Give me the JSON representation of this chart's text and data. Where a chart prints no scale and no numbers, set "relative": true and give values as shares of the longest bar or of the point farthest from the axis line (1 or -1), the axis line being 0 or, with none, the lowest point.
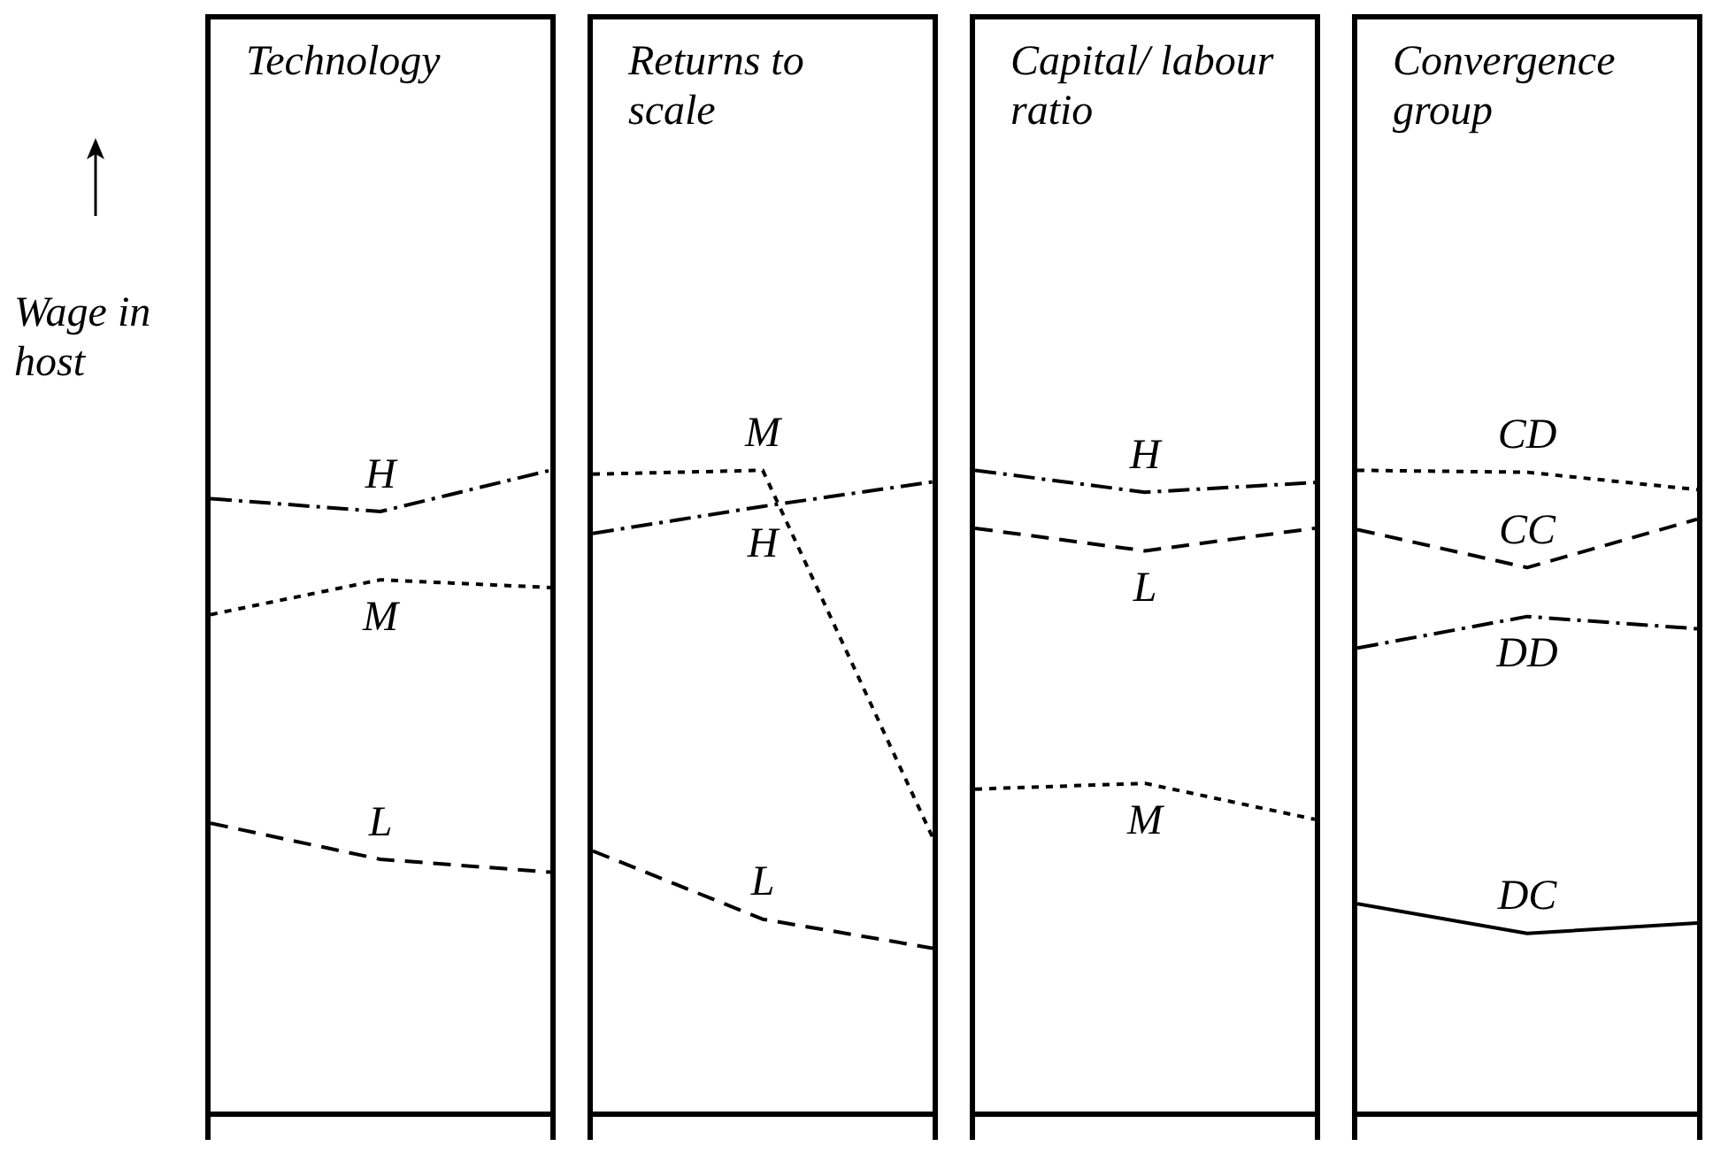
{
  "chart_data": [
    {
      "type": "line",
      "title": "Technology",
      "ylabel": "Wage in host",
      "relative": true,
      "categories": [
        null,
        null,
        null
      ],
      "grid": false,
      "legend": false,
      "marker": "none",
      "series": [
        {
          "name": "H",
          "color": "#000000",
          "line_style": "dashdot",
          "values": [
            0.956,
            0.936,
            1
          ]
        },
        {
          "name": "M",
          "color": "#000000",
          "line_style": "dotted",
          "values": [
            0.776,
            0.83,
            0.818
          ]
        },
        {
          "name": "L",
          "color": "#000000",
          "line_style": "dashed",
          "values": [
            0.452,
            0.396,
            0.376
          ]
        }
      ]
    },
    {
      "type": "line",
      "title": "Returns to scale",
      "relative": true,
      "categories": [
        null,
        null,
        null
      ],
      "grid": false,
      "legend": false,
      "marker": "none",
      "series": [
        {
          "name": "M",
          "color": "#000000",
          "line_style": "dotted",
          "values": [
            0.994,
            1,
            0.43
          ]
        },
        {
          "name": "H",
          "color": "#000000",
          "line_style": "dashdot",
          "values": [
            0.902,
            0.944,
            0.982
          ]
        },
        {
          "name": "L",
          "color": "#000000",
          "line_style": "dashed",
          "values": [
            0.409,
            0.303,
            0.258
          ]
        }
      ]
    },
    {
      "type": "line",
      "title": "Capital/ labour ratio",
      "relative": true,
      "categories": [
        null,
        null,
        null
      ],
      "grid": false,
      "legend": false,
      "marker": "none",
      "series": [
        {
          "name": "H",
          "color": "#000000",
          "line_style": "dashdot",
          "values": [
            1,
            0.966,
            0.981
          ]
        },
        {
          "name": "L",
          "color": "#000000",
          "line_style": "dashed",
          "values": [
            0.91,
            0.875,
            0.91
          ]
        },
        {
          "name": "M",
          "color": "#000000",
          "line_style": "dotted",
          "values": [
            0.505,
            0.514,
            0.458
          ]
        }
      ]
    },
    {
      "type": "line",
      "title": "Convergence group",
      "relative": true,
      "categories": [
        null,
        null,
        null
      ],
      "grid": false,
      "legend": false,
      "marker": "none",
      "series": [
        {
          "name": "CD",
          "color": "#000000",
          "line_style": "dotted",
          "values": [
            1,
            0.997,
            0.97
          ]
        },
        {
          "name": "CC",
          "color": "#000000",
          "line_style": "dashed",
          "values": [
            0.908,
            0.849,
            0.924
          ]
        },
        {
          "name": "DD",
          "color": "#000000",
          "line_style": "dashdot",
          "values": [
            0.724,
            0.773,
            0.754
          ]
        },
        {
          "name": "DC",
          "color": "#000000",
          "line_style": "solid",
          "values": [
            0.327,
            0.281,
            0.297
          ]
        }
      ]
    }
  ]
}
